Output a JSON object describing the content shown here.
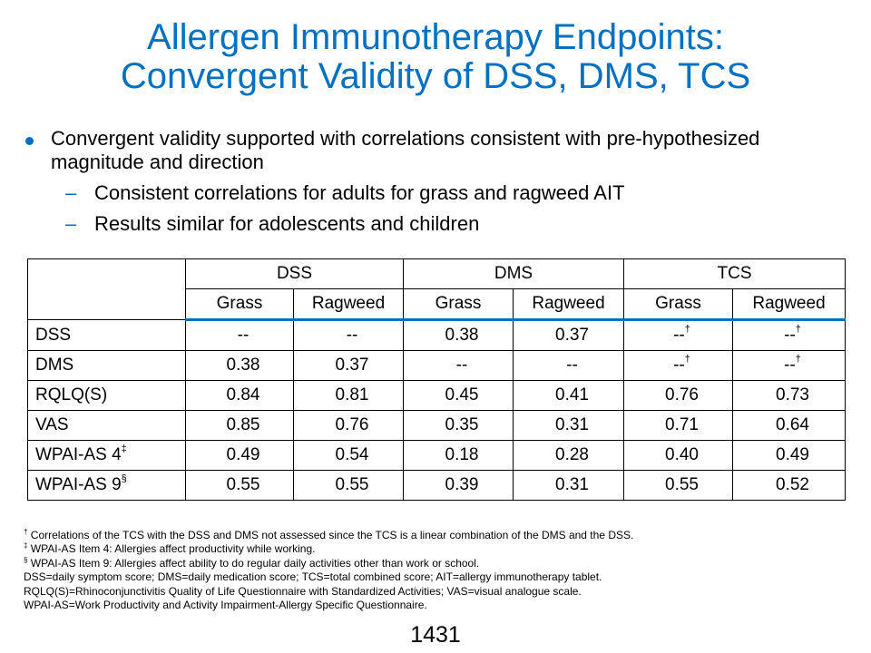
{
  "title": {
    "line1": "Allergen Immunotherapy Endpoints:",
    "line2": "Convergent Validity of DSS, DMS, TCS"
  },
  "bullets": {
    "main": "Convergent validity supported with correlations consistent with pre-hypothesized magnitude and direction",
    "sub": [
      "Consistent correlations for adults for grass and ragweed AIT",
      "Results similar for adolescents and children"
    ]
  },
  "table": {
    "groups": [
      "DSS",
      "DMS",
      "TCS"
    ],
    "subheaders": [
      "Grass",
      "Ragweed",
      "Grass",
      "Ragweed",
      "Grass",
      "Ragweed"
    ],
    "rows": [
      {
        "label": "DSS",
        "label_sup": "",
        "cells": [
          {
            "v": "--",
            "s": ""
          },
          {
            "v": "--",
            "s": ""
          },
          {
            "v": "0.38",
            "s": ""
          },
          {
            "v": "0.37",
            "s": ""
          },
          {
            "v": "--",
            "s": "†"
          },
          {
            "v": "--",
            "s": "†"
          }
        ]
      },
      {
        "label": "DMS",
        "label_sup": "",
        "cells": [
          {
            "v": "0.38",
            "s": ""
          },
          {
            "v": "0.37",
            "s": ""
          },
          {
            "v": "--",
            "s": ""
          },
          {
            "v": "--",
            "s": ""
          },
          {
            "v": "--",
            "s": "†"
          },
          {
            "v": "--",
            "s": "†"
          }
        ]
      },
      {
        "label": "RQLQ(S)",
        "label_sup": "",
        "cells": [
          {
            "v": "0.84",
            "s": ""
          },
          {
            "v": "0.81",
            "s": ""
          },
          {
            "v": "0.45",
            "s": ""
          },
          {
            "v": "0.41",
            "s": ""
          },
          {
            "v": "0.76",
            "s": ""
          },
          {
            "v": "0.73",
            "s": ""
          }
        ]
      },
      {
        "label": "VAS",
        "label_sup": "",
        "cells": [
          {
            "v": "0.85",
            "s": ""
          },
          {
            "v": "0.76",
            "s": ""
          },
          {
            "v": "0.35",
            "s": ""
          },
          {
            "v": "0.31",
            "s": ""
          },
          {
            "v": "0.71",
            "s": ""
          },
          {
            "v": "0.64",
            "s": ""
          }
        ]
      },
      {
        "label": "WPAI-AS 4",
        "label_sup": "‡",
        "cells": [
          {
            "v": "0.49",
            "s": ""
          },
          {
            "v": "0.54",
            "s": ""
          },
          {
            "v": "0.18",
            "s": ""
          },
          {
            "v": "0.28",
            "s": ""
          },
          {
            "v": "0.40",
            "s": ""
          },
          {
            "v": "0.49",
            "s": ""
          }
        ]
      },
      {
        "label": "WPAI-AS 9",
        "label_sup": "§",
        "cells": [
          {
            "v": "0.55",
            "s": ""
          },
          {
            "v": "0.55",
            "s": ""
          },
          {
            "v": "0.39",
            "s": ""
          },
          {
            "v": "0.31",
            "s": ""
          },
          {
            "v": "0.55",
            "s": ""
          },
          {
            "v": "0.52",
            "s": ""
          }
        ]
      }
    ]
  },
  "footnotes": [
    {
      "mark": "†",
      "text": " Correlations of the TCS with the DSS and DMS not assessed since the TCS is a linear combination of the DMS and the DSS."
    },
    {
      "mark": "‡",
      "text": " WPAI-AS Item 4: Allergies affect productivity while working."
    },
    {
      "mark": "§",
      "text": " WPAI-AS Item 9: Allergies affect ability to do regular daily activities other than work or school."
    },
    {
      "mark": "",
      "text": "DSS=daily symptom score; DMS=daily medication score; TCS=total combined score; AIT=allergy  immunotherapy  tablet."
    },
    {
      "mark": "",
      "text": "RQLQ(S)=Rhinoconjunctivitis  Quality of Life Questionnaire with Standardized Activities; VAS=visual analogue scale."
    },
    {
      "mark": "",
      "text": "WPAI-AS=Work Productivity and Activity Impairment-Allergy  Specific Questionnaire."
    }
  ],
  "page_number": "1431",
  "colors": {
    "title": "#0070c0",
    "bullet": "#0070c0",
    "header_rule": "#0070c0"
  }
}
